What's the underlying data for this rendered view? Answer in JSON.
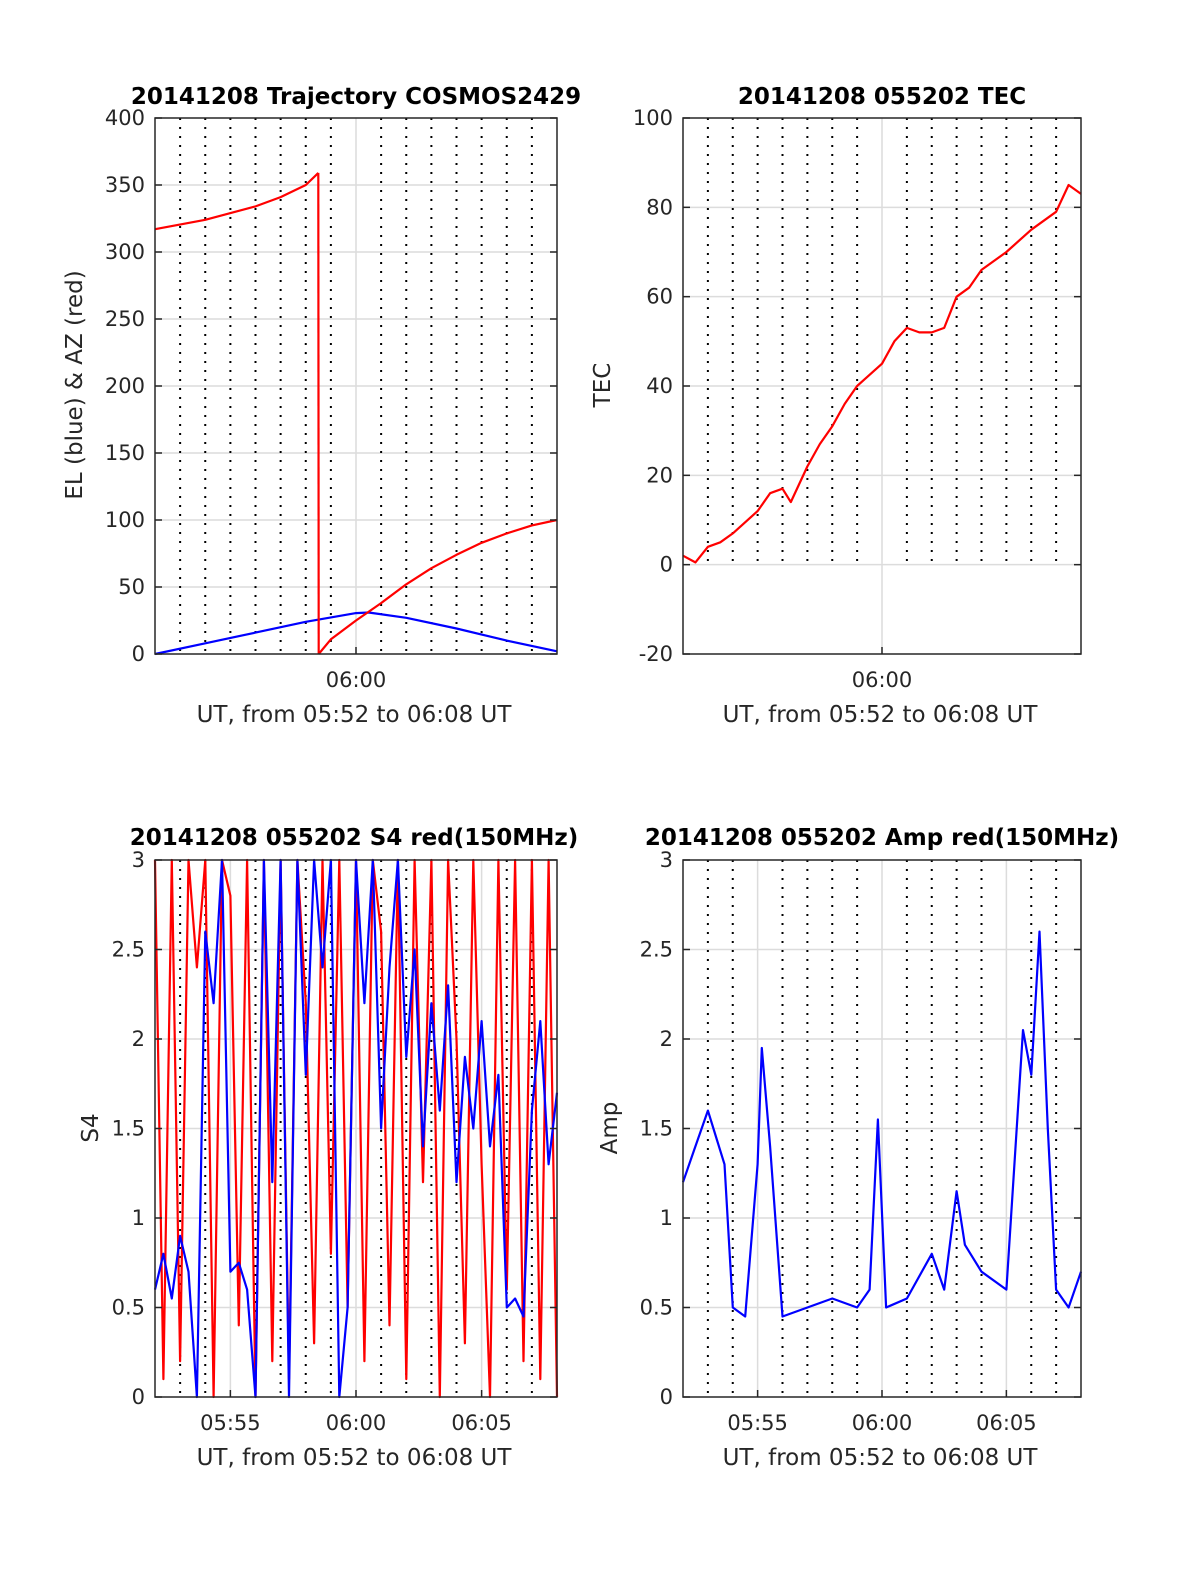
{
  "colors": {
    "red": "#ff0000",
    "blue": "#0000ff",
    "grid": "#dcdcdc",
    "axis": "#262626"
  },
  "chart_data": [
    {
      "id": "trajectory",
      "type": "line",
      "title": "20141208 Trajectory COSMOS2429",
      "xlabel": "UT, from 05:52 to 06:08 UT",
      "ylabel": "EL (blue) & AZ (red)",
      "xlim": [
        "05:52",
        "06:08"
      ],
      "ylim": [
        0,
        400
      ],
      "yticks": [
        0,
        50,
        100,
        150,
        200,
        250,
        300,
        350,
        400
      ],
      "xticks": [
        {
          "t": "06:00",
          "label": "06:00"
        }
      ],
      "dotted_vlines": [
        "05:53",
        "05:54",
        "05:55",
        "05:56",
        "05:57",
        "05:58",
        "05:59",
        "06:01",
        "06:02",
        "06:03",
        "06:04",
        "06:05",
        "06:06",
        "06:07"
      ],
      "grid": true,
      "series": [
        {
          "color": "blue",
          "x": [
            "05:52",
            "05:54",
            "05:56",
            "05:58",
            "06:00",
            "06:00:30",
            "06:02",
            "06:04",
            "06:06",
            "06:08"
          ],
          "values": [
            0,
            8,
            16,
            24,
            30.5,
            31,
            27,
            19,
            10,
            2
          ]
        },
        {
          "color": "red",
          "x": [
            "05:52",
            "05:54",
            "05:56",
            "05:57",
            "05:58",
            "05:58:30"
          ],
          "values": [
            317,
            324,
            334,
            341,
            350,
            359
          ]
        },
        {
          "color": "red",
          "x": [
            "05:58:30",
            "05:58:31"
          ],
          "values": [
            359,
            0
          ]
        },
        {
          "color": "red",
          "x": [
            "05:58:31",
            "05:59",
            "06:00",
            "06:01",
            "06:02",
            "06:03",
            "06:04",
            "06:05",
            "06:06",
            "06:07",
            "06:08"
          ],
          "values": [
            0,
            11,
            25,
            38,
            52,
            64,
            74,
            83,
            90,
            96,
            100
          ]
        }
      ]
    },
    {
      "id": "tec",
      "type": "line",
      "title": "20141208 055202 TEC",
      "xlabel": "UT, from 05:52 to 06:08 UT",
      "ylabel": "TEC",
      "xlim": [
        "05:52",
        "06:08"
      ],
      "ylim": [
        -20,
        100
      ],
      "yticks": [
        -20,
        0,
        20,
        40,
        60,
        80,
        100
      ],
      "xticks": [
        {
          "t": "06:00",
          "label": "06:00"
        }
      ],
      "dotted_vlines": [
        "05:53",
        "05:54",
        "05:55",
        "05:56",
        "05:57",
        "05:58",
        "05:59",
        "06:01",
        "06:02",
        "06:03",
        "06:04",
        "06:05",
        "06:06",
        "06:07"
      ],
      "dotted_ymin": 0,
      "grid": true,
      "series": [
        {
          "color": "red",
          "x": [
            "05:52",
            "05:52:30",
            "05:53",
            "05:53:30",
            "05:54",
            "05:55",
            "05:55:30",
            "05:56",
            "05:56:20",
            "05:57",
            "05:57:30",
            "05:58",
            "05:58:30",
            "05:59",
            "06:00",
            "06:00:30",
            "06:01",
            "06:01:30",
            "06:02",
            "06:02:30",
            "06:03",
            "06:03:30",
            "06:04",
            "06:05",
            "06:06",
            "06:07",
            "06:07:30",
            "06:08"
          ],
          "values": [
            2,
            0.5,
            4,
            5,
            7,
            12,
            16,
            17,
            14,
            22,
            27,
            31,
            36,
            40,
            45,
            50,
            53,
            52,
            52,
            53,
            60,
            62,
            66,
            70,
            75,
            79,
            85,
            83
          ]
        }
      ]
    },
    {
      "id": "s4",
      "type": "line",
      "title": "20141208 055202 S4 red(150MHz)",
      "xlabel": "UT, from 05:52 to 06:08 UT",
      "ylabel": "S4",
      "xlim": [
        "05:52",
        "06:08"
      ],
      "ylim": [
        0,
        3
      ],
      "yticks": [
        0,
        0.5,
        1,
        1.5,
        2,
        2.5,
        3
      ],
      "xticks": [
        {
          "t": "05:55",
          "label": "05:55"
        },
        {
          "t": "06:00",
          "label": "06:00"
        },
        {
          "t": "06:05",
          "label": "06:05"
        }
      ],
      "dotted_vlines": [
        "05:53",
        "05:54",
        "05:56",
        "05:57",
        "05:58",
        "05:59",
        "06:01",
        "06:02",
        "06:03",
        "06:04",
        "06:06",
        "06:07"
      ],
      "grid": true,
      "series": [
        {
          "color": "red",
          "x": [
            "05:52",
            "05:52:20",
            "05:52:40",
            "05:53",
            "05:53:20",
            "05:53:40",
            "05:54",
            "05:54:20",
            "05:54:40",
            "05:55",
            "05:55:20",
            "05:55:40",
            "05:56",
            "05:56:20",
            "05:56:40",
            "05:57",
            "05:57:20",
            "05:57:40",
            "05:58",
            "05:58:20",
            "05:58:40",
            "05:59",
            "05:59:20",
            "05:59:40",
            "06:00",
            "06:00:20",
            "06:00:40",
            "06:01",
            "06:01:20",
            "06:01:40",
            "06:02",
            "06:02:20",
            "06:02:40",
            "06:03",
            "06:03:20",
            "06:03:40",
            "06:04",
            "06:04:20",
            "06:04:40",
            "06:05",
            "06:05:20",
            "06:05:40",
            "06:06",
            "06:06:20",
            "06:06:40",
            "06:07",
            "06:07:20",
            "06:07:40",
            "06:08"
          ],
          "values": [
            3,
            0.1,
            3,
            0.2,
            3,
            2.4,
            3,
            0,
            3,
            2.8,
            0.4,
            3,
            0,
            3,
            0.2,
            3,
            0.1,
            3,
            2.2,
            0.3,
            3,
            0.8,
            3,
            0.5,
            3,
            0.2,
            3,
            2.6,
            0.4,
            3,
            0.1,
            3,
            1.2,
            3,
            0,
            3,
            2,
            0.3,
            3,
            1.3,
            0,
            3,
            0.6,
            3,
            0.2,
            3,
            0.1,
            3,
            0
          ]
        },
        {
          "color": "blue",
          "x": [
            "05:52",
            "05:52:20",
            "05:52:40",
            "05:53",
            "05:53:20",
            "05:53:40",
            "05:54",
            "05:54:20",
            "05:54:40",
            "05:55",
            "05:55:20",
            "05:55:40",
            "05:56",
            "05:56:20",
            "05:56:40",
            "05:57",
            "05:57:20",
            "05:57:40",
            "05:58",
            "05:58:20",
            "05:58:40",
            "05:59",
            "05:59:20",
            "05:59:40",
            "06:00",
            "06:00:20",
            "06:00:40",
            "06:01",
            "06:01:20",
            "06:01:40",
            "06:02",
            "06:02:20",
            "06:02:40",
            "06:03",
            "06:03:20",
            "06:03:40",
            "06:04",
            "06:04:20",
            "06:04:40",
            "06:05",
            "06:05:20",
            "06:05:40",
            "06:06",
            "06:06:20",
            "06:06:40",
            "06:07",
            "06:07:20",
            "06:07:40",
            "06:08"
          ],
          "values": [
            0.6,
            0.8,
            0.55,
            0.9,
            0.7,
            0,
            2.6,
            2.2,
            3,
            0.7,
            0.75,
            0.6,
            0,
            3,
            1.2,
            3,
            0,
            3,
            1.8,
            3,
            2.4,
            3,
            0,
            0.5,
            3,
            2.2,
            3,
            1.5,
            2.4,
            3,
            1.9,
            2.5,
            1.4,
            2.2,
            1.6,
            2.3,
            1.2,
            1.9,
            1.5,
            2.1,
            1.4,
            1.8,
            0.5,
            0.55,
            0.45,
            1.6,
            2.1,
            1.3,
            1.7
          ]
        }
      ]
    },
    {
      "id": "amp",
      "type": "line",
      "title": "20141208 055202 Amp red(150MHz)",
      "xlabel": "UT, from 05:52 to 06:08 UT",
      "ylabel": "Amp",
      "xlim": [
        "05:52",
        "06:08"
      ],
      "ylim": [
        0,
        3
      ],
      "yticks": [
        0,
        0.5,
        1,
        1.5,
        2,
        2.5,
        3
      ],
      "xticks": [
        {
          "t": "05:55",
          "label": "05:55"
        },
        {
          "t": "06:00",
          "label": "06:00"
        },
        {
          "t": "06:05",
          "label": "06:05"
        }
      ],
      "dotted_vlines": [
        "05:53",
        "05:54",
        "05:56",
        "05:57",
        "05:58",
        "05:59",
        "06:01",
        "06:02",
        "06:03",
        "06:04",
        "06:06",
        "06:07"
      ],
      "grid": true,
      "series": [
        {
          "color": "blue",
          "x": [
            "05:52",
            "05:52:30",
            "05:53",
            "05:53:20",
            "05:53:40",
            "05:54",
            "05:54:30",
            "05:55",
            "05:55:10",
            "05:55:30",
            "05:56",
            "05:57",
            "05:58",
            "05:59",
            "05:59:30",
            "05:59:50",
            "06:00:10",
            "06:01",
            "06:02",
            "06:02:30",
            "06:03",
            "06:03:20",
            "06:04",
            "06:05",
            "06:05:40",
            "06:06",
            "06:06:20",
            "06:06:40",
            "06:07",
            "06:07:30",
            "06:08"
          ],
          "values": [
            1.2,
            1.4,
            1.6,
            1.45,
            1.3,
            0.5,
            0.45,
            1.3,
            1.95,
            1.4,
            0.45,
            0.5,
            0.55,
            0.5,
            0.6,
            1.55,
            0.5,
            0.55,
            0.8,
            0.6,
            1.15,
            0.85,
            0.7,
            0.6,
            2.05,
            1.8,
            2.6,
            1.5,
            0.6,
            0.5,
            0.7
          ]
        }
      ]
    }
  ]
}
